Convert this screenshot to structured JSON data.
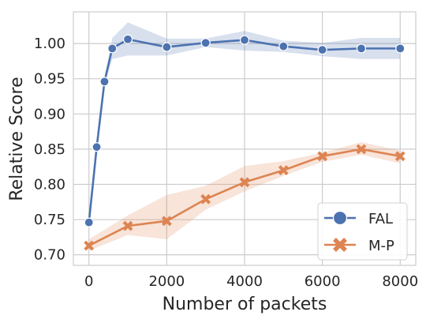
{
  "chart_data": {
    "type": "line",
    "title": "",
    "xlabel": "Number of packets",
    "ylabel": "Relative Score",
    "xlim": [
      -400,
      8400
    ],
    "ylim": [
      0.685,
      1.045
    ],
    "xticks": [
      0,
      2000,
      4000,
      6000,
      8000
    ],
    "xtick_labels": [
      "0",
      "2000",
      "4000",
      "6000",
      "8000"
    ],
    "yticks": [
      0.7,
      0.75,
      0.8,
      0.85,
      0.9,
      0.95,
      1.0
    ],
    "ytick_labels": [
      "0.70",
      "0.75",
      "0.80",
      "0.85",
      "0.90",
      "0.95",
      "1.00"
    ],
    "grid": true,
    "legend_position": "bottom-right",
    "series": [
      {
        "name": "FAL",
        "color": "#4c72b0",
        "marker": "circle",
        "x": [
          0,
          200,
          400,
          600,
          1000,
          2000,
          3000,
          4000,
          5000,
          6000,
          7000,
          8000
        ],
        "y": [
          0.746,
          0.853,
          0.946,
          0.993,
          1.006,
          0.995,
          1.001,
          1.005,
          0.996,
          0.991,
          0.993,
          0.993
        ],
        "lower": [
          0.744,
          0.849,
          0.94,
          0.978,
          0.983,
          0.983,
          0.995,
          0.99,
          0.988,
          0.982,
          0.978,
          0.978
        ],
        "upper": [
          0.748,
          0.857,
          0.952,
          1.008,
          1.03,
          1.007,
          1.007,
          1.018,
          1.004,
          1.001,
          1.008,
          1.008
        ]
      },
      {
        "name": "M-P",
        "color": "#dd8452",
        "marker": "x",
        "x": [
          0,
          1000,
          2000,
          3000,
          4000,
          5000,
          6000,
          7000,
          8000
        ],
        "y": [
          0.713,
          0.741,
          0.748,
          0.779,
          0.803,
          0.82,
          0.84,
          0.85,
          0.84
        ],
        "lower": [
          0.706,
          0.728,
          0.722,
          0.764,
          0.79,
          0.812,
          0.832,
          0.842,
          0.83
        ],
        "upper": [
          0.722,
          0.756,
          0.785,
          0.798,
          0.826,
          0.833,
          0.845,
          0.86,
          0.848
        ]
      }
    ]
  }
}
